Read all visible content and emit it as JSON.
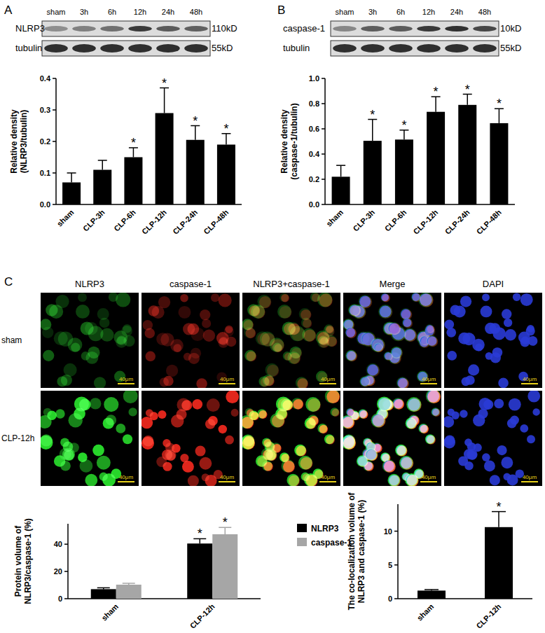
{
  "figure": {
    "panel_labels": [
      "A",
      "B",
      "C"
    ],
    "blots": [
      {
        "lanes": [
          "sham",
          "3h",
          "6h",
          "12h",
          "24h",
          "48h"
        ],
        "rows": [
          {
            "label": "NLRP3",
            "size": "110kD"
          },
          {
            "label": "tubulin",
            "size": "55kD"
          }
        ]
      },
      {
        "lanes": [
          "sham",
          "3h",
          "6h",
          "12h",
          "24h",
          "48h"
        ],
        "rows": [
          {
            "label": "caspase-1",
            "size": "10kD"
          },
          {
            "label": "tubulin",
            "size": "55kD"
          }
        ]
      }
    ],
    "images": {
      "columns": [
        "NLRP3",
        "caspase-1",
        "NLRP3+caspase-1",
        "Merge",
        "DAPI"
      ],
      "rows": [
        "sham",
        "CLP-12h"
      ],
      "scale_bar": "40μm"
    }
  },
  "chart_data": [
    {
      "type": "bar",
      "y_label": [
        "Relative density",
        "(NLRP3/tubulin)"
      ],
      "categories": [
        "sham",
        "CLP-3h",
        "CLP-6h",
        "CLP-12h",
        "CLP-24h",
        "CLP-48h"
      ],
      "values": [
        0.07,
        0.11,
        0.15,
        0.29,
        0.205,
        0.19
      ],
      "errors": [
        0.03,
        0.03,
        0.03,
        0.08,
        0.045,
        0.035
      ],
      "significant": [
        false,
        false,
        true,
        true,
        true,
        true
      ],
      "significance_mark": "*",
      "color": "#000000",
      "ylim": [
        0,
        0.4
      ],
      "yticks": [
        {
          "value": 0,
          "label": "0.0"
        },
        {
          "value": 0.1,
          "label": "0.1"
        },
        {
          "value": 0.2,
          "label": "0.2"
        },
        {
          "value": 0.3,
          "label": "0.3"
        },
        {
          "value": 0.4,
          "label": "0.4"
        }
      ],
      "grid": false
    },
    {
      "type": "bar",
      "y_label": [
        "Relative density",
        "(caspase-1/tubulin)"
      ],
      "categories": [
        "sham",
        "CLP-3h",
        "CLP-6h",
        "CLP-12h",
        "CLP-24h",
        "CLP-48h"
      ],
      "values": [
        0.22,
        0.505,
        0.515,
        0.735,
        0.79,
        0.645
      ],
      "errors": [
        0.09,
        0.17,
        0.075,
        0.12,
        0.085,
        0.115
      ],
      "significant": [
        false,
        true,
        true,
        true,
        true,
        true
      ],
      "significance_mark": "*",
      "color": "#000000",
      "ylim": [
        0,
        1.0
      ],
      "yticks": [
        {
          "value": 0,
          "label": "0.0"
        },
        {
          "value": 0.2,
          "label": "0.2"
        },
        {
          "value": 0.4,
          "label": "0.4"
        },
        {
          "value": 0.6,
          "label": "0.6"
        },
        {
          "value": 0.8,
          "label": "0.8"
        },
        {
          "value": 1.0,
          "label": "1.0"
        }
      ],
      "grid": false
    },
    {
      "type": "bar",
      "y_label": [
        "Protein volume of",
        "NLRP3/caspase-1 (%)"
      ],
      "categories": [
        "sham",
        "CLP-12h"
      ],
      "series": [
        {
          "name": "NLRP3",
          "color": "#000000",
          "values": [
            7,
            40.5
          ],
          "errors": [
            1,
            3.5
          ],
          "significant": [
            false,
            true
          ]
        },
        {
          "name": "caspase-1",
          "color": "#a6a6a6",
          "values": [
            10.3,
            47.3
          ],
          "errors": [
            1,
            5
          ],
          "significant": [
            false,
            true
          ]
        }
      ],
      "significance_mark": "*",
      "ylim": [
        0,
        55
      ],
      "yticks": [
        0,
        20,
        40
      ],
      "grid": false,
      "legend": "right"
    },
    {
      "type": "bar",
      "y_label": [
        "The co-localization volume of",
        "NLRP3 and caspase-1 (%)"
      ],
      "categories": [
        "sham",
        "CLP-12h"
      ],
      "values": [
        1.2,
        10.6
      ],
      "errors": [
        0.15,
        2.3
      ],
      "significant": [
        false,
        true
      ],
      "significance_mark": "*",
      "color": "#000000",
      "ylim": [
        0,
        14
      ],
      "yticks": [
        0,
        5,
        10
      ],
      "grid": false
    }
  ]
}
